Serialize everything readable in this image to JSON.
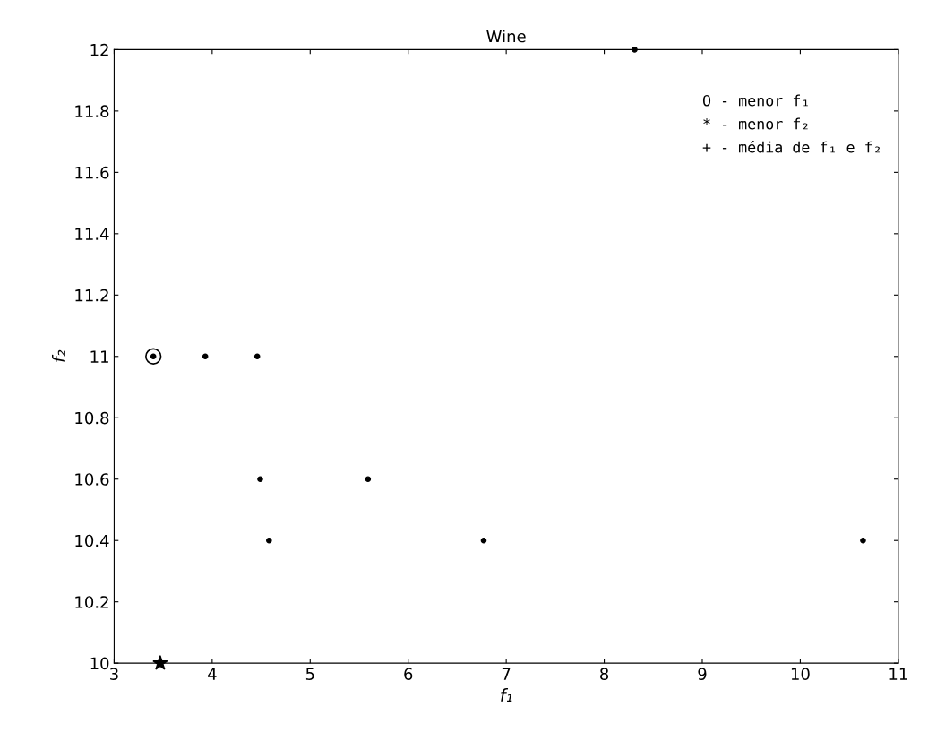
{
  "chart_data": {
    "type": "scatter",
    "title": "Wine",
    "xlabel": "f₁",
    "ylabel": "f₂",
    "xlim": [
      3,
      11
    ],
    "xticks": [
      3,
      4,
      5,
      6,
      7,
      8,
      9,
      10,
      11
    ],
    "ylim": [
      10,
      12
    ],
    "yticks": [
      10,
      {
        "value": 10.2,
        "label": "10.2"
      },
      {
        "value": 10.4,
        "label": "10.4"
      },
      {
        "value": 10.6,
        "label": "10.6"
      },
      {
        "value": 10.8,
        "label": "10.8"
      },
      11,
      {
        "value": 11.2,
        "label": "11.2"
      },
      {
        "value": 11.4,
        "label": "11.4"
      },
      {
        "value": 11.6,
        "label": "11.6"
      },
      {
        "value": 11.8,
        "label": "11.8"
      },
      12
    ],
    "grid": false,
    "series": [
      {
        "color": "#000000",
        "marker": "circle",
        "x": [
          8.31,
          3.4,
          3.93,
          4.46,
          4.49,
          4.58,
          5.59,
          6.77,
          10.64
        ],
        "values": [
          12.0,
          11.0,
          11.0,
          11.0,
          10.6,
          10.4,
          10.6,
          10.4,
          10.4
        ]
      },
      {
        "color": "#000000",
        "marker": "circle",
        "x": [
          3.4
        ],
        "values": [
          11.0
        ]
      },
      {
        "color": "#000000",
        "marker": "star",
        "x": [
          3.47
        ],
        "values": [
          10.0
        ]
      }
    ],
    "annotations": [
      "O - menor f₁",
      "* - menor f₂",
      "+ - média de f₁ e f₂"
    ]
  }
}
